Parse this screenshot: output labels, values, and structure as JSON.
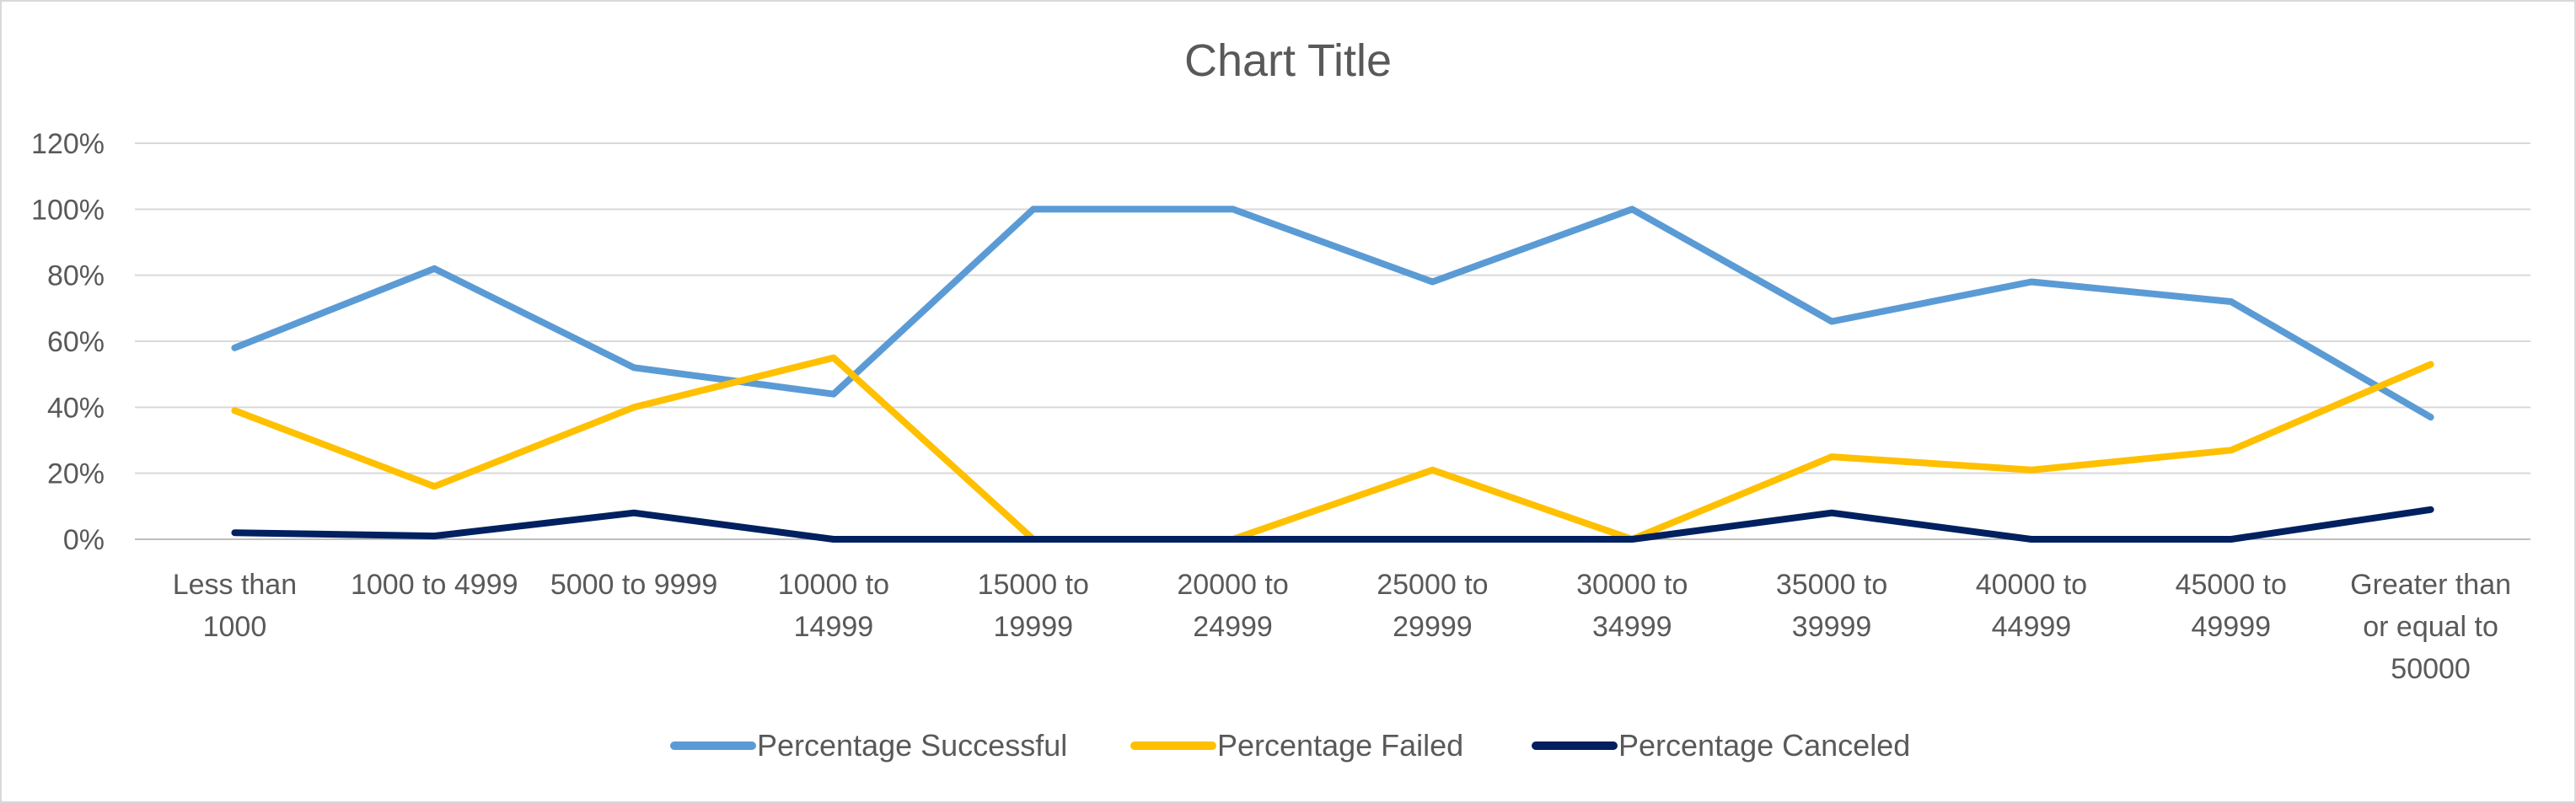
{
  "chart_data": {
    "type": "line",
    "title": "Chart Title",
    "xlabel": "",
    "ylabel": "",
    "ylim": [
      0,
      1.2
    ],
    "y_ticks": [
      0,
      0.2,
      0.4,
      0.6,
      0.8,
      1.0,
      1.2
    ],
    "y_tick_labels": [
      "0%",
      "20%",
      "40%",
      "60%",
      "80%",
      "100%",
      "120%"
    ],
    "grid": true,
    "legend_position": "bottom",
    "categories": [
      [
        "Less than",
        "1000"
      ],
      [
        "1000 to 4999"
      ],
      [
        "5000 to 9999"
      ],
      [
        "10000 to",
        "14999"
      ],
      [
        "15000 to",
        "19999"
      ],
      [
        "20000 to",
        "24999"
      ],
      [
        "25000 to",
        "29999"
      ],
      [
        "30000 to",
        "34999"
      ],
      [
        "35000 to",
        "39999"
      ],
      [
        "40000 to",
        "44999"
      ],
      [
        "45000 to",
        "49999"
      ],
      [
        "Greater than",
        "or equal to",
        "50000"
      ]
    ],
    "series": [
      {
        "name": "Percentage Successful",
        "color": "#5b9bd5",
        "values": [
          0.58,
          0.82,
          0.52,
          0.44,
          1.0,
          1.0,
          0.78,
          1.0,
          0.66,
          0.78,
          0.72,
          0.37
        ]
      },
      {
        "name": "Percentage Failed",
        "color": "#ffc000",
        "values": [
          0.39,
          0.16,
          0.4,
          0.55,
          0.0,
          0.0,
          0.21,
          0.0,
          0.25,
          0.21,
          0.27,
          0.53
        ]
      },
      {
        "name": "Percentage Canceled",
        "color": "#002060",
        "values": [
          0.02,
          0.01,
          0.08,
          0.0,
          0.0,
          0.0,
          0.0,
          0.0,
          0.08,
          0.0,
          0.0,
          0.09
        ]
      }
    ]
  }
}
